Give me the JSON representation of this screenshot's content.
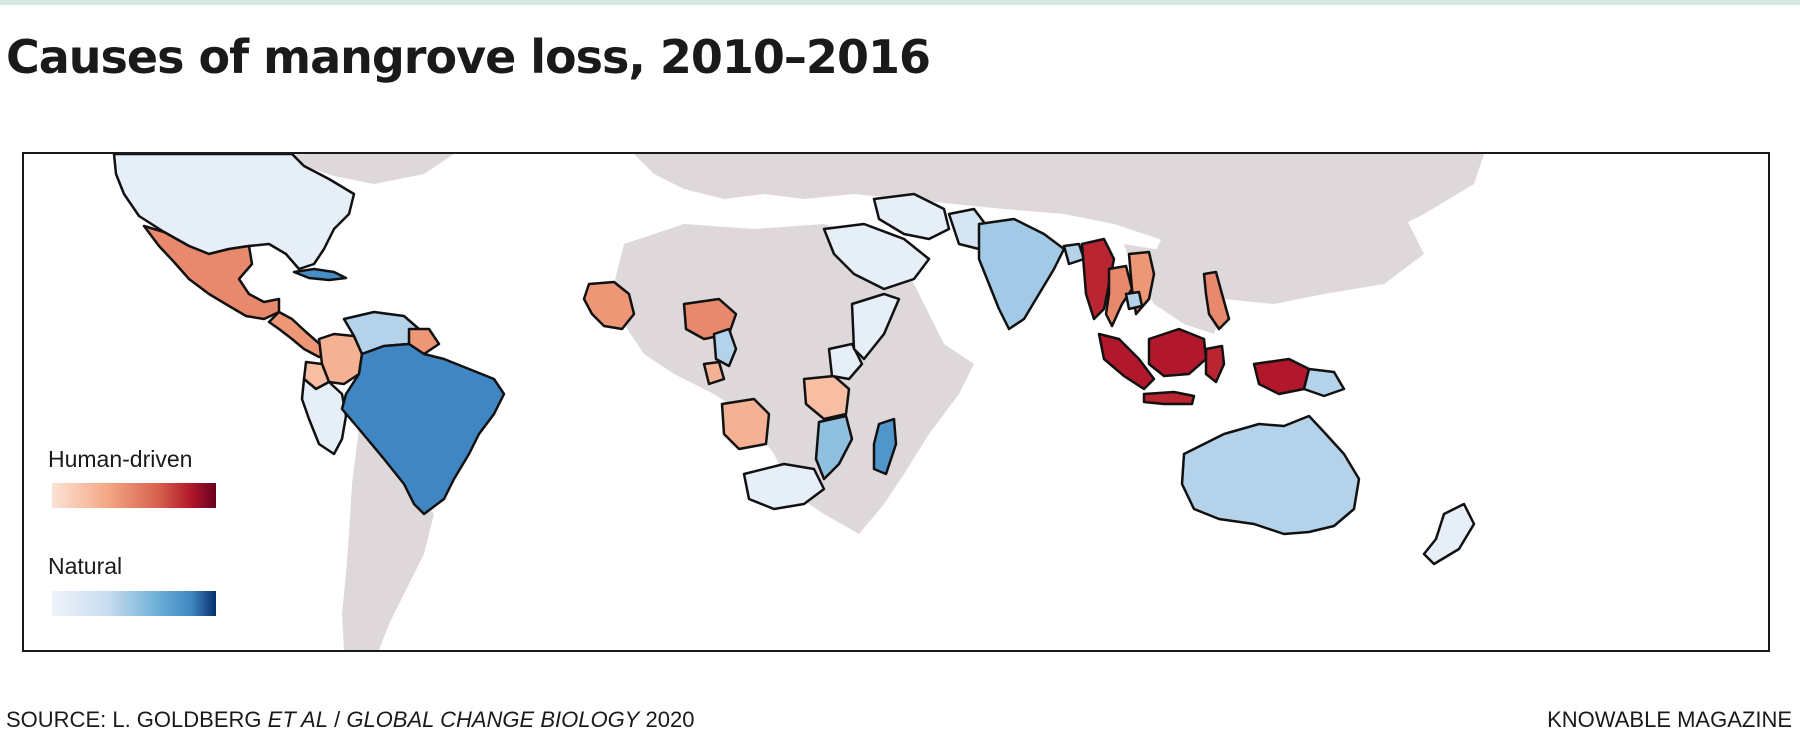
{
  "title": "Causes of mangrove loss, 2010–2016",
  "legend": {
    "human_label": "Human-driven",
    "natural_label": "Natural"
  },
  "footer": {
    "source_prefix": "SOURCE: L. GOLDBERG",
    "source_italic_authors": "ET AL",
    "source_separator": " / ",
    "source_italic_journal": "GLOBAL CHANGE BIOLOGY",
    "source_year": "2020",
    "credit": "KNOWABLE MAGAZINE"
  },
  "colors": {
    "human_scale": [
      "#fbe3d6",
      "#f4a582",
      "#d6604d",
      "#b2182b",
      "#67001f"
    ],
    "natural_scale": [
      "#eef4fa",
      "#c6dbef",
      "#6baed6",
      "#3f86c2",
      "#08306b"
    ],
    "no_data_land": "#ded8da",
    "border": "#111111",
    "top_rule": "#d3e7e3"
  },
  "map_data": {
    "regions": [
      {
        "id": "north-america",
        "category": "natural",
        "intensity": 0.05
      },
      {
        "id": "mexico",
        "category": "human",
        "intensity": 0.35
      },
      {
        "id": "central-america",
        "category": "human",
        "intensity": 0.3
      },
      {
        "id": "cuba",
        "category": "natural",
        "intensity": 0.7
      },
      {
        "id": "colombia",
        "category": "human",
        "intensity": 0.2
      },
      {
        "id": "venezuela",
        "category": "natural",
        "intensity": 0.3
      },
      {
        "id": "guianas",
        "category": "human",
        "intensity": 0.3
      },
      {
        "id": "ecuador",
        "category": "human",
        "intensity": 0.15
      },
      {
        "id": "peru",
        "category": "natural",
        "intensity": 0.05
      },
      {
        "id": "brazil",
        "category": "natural",
        "intensity": 0.75
      },
      {
        "id": "west-africa-guinea",
        "category": "human",
        "intensity": 0.3
      },
      {
        "id": "nigeria",
        "category": "human",
        "intensity": 0.35
      },
      {
        "id": "cameroon",
        "category": "natural",
        "intensity": 0.3
      },
      {
        "id": "gabon",
        "category": "human",
        "intensity": 0.2
      },
      {
        "id": "angola",
        "category": "human",
        "intensity": 0.2
      },
      {
        "id": "tanzania",
        "category": "human",
        "intensity": 0.15
      },
      {
        "id": "kenya",
        "category": "natural",
        "intensity": 0.05
      },
      {
        "id": "somalia",
        "category": "natural",
        "intensity": 0.05
      },
      {
        "id": "mozambique",
        "category": "natural",
        "intensity": 0.4
      },
      {
        "id": "madagascar",
        "category": "natural",
        "intensity": 0.65
      },
      {
        "id": "south-africa",
        "category": "natural",
        "intensity": 0.05
      },
      {
        "id": "arabian-peninsula",
        "category": "natural",
        "intensity": 0.05
      },
      {
        "id": "iran",
        "category": "natural",
        "intensity": 0.05
      },
      {
        "id": "pakistan",
        "category": "natural",
        "intensity": 0.15
      },
      {
        "id": "india",
        "category": "natural",
        "intensity": 0.35
      },
      {
        "id": "bangladesh",
        "category": "natural",
        "intensity": 0.3
      },
      {
        "id": "myanmar",
        "category": "human",
        "intensity": 0.7
      },
      {
        "id": "thailand",
        "category": "human",
        "intensity": 0.35
      },
      {
        "id": "vietnam",
        "category": "human",
        "intensity": 0.3
      },
      {
        "id": "cambodia",
        "category": "natural",
        "intensity": 0.3
      },
      {
        "id": "philippines",
        "category": "human",
        "intensity": 0.35
      },
      {
        "id": "malaysia-borneo",
        "category": "human",
        "intensity": 0.75
      },
      {
        "id": "sumatra",
        "category": "human",
        "intensity": 0.75
      },
      {
        "id": "java",
        "category": "human",
        "intensity": 0.7
      },
      {
        "id": "sulawesi",
        "category": "human",
        "intensity": 0.7
      },
      {
        "id": "new-guinea-west",
        "category": "human",
        "intensity": 0.75
      },
      {
        "id": "papua-new-guinea",
        "category": "natural",
        "intensity": 0.3
      },
      {
        "id": "australia",
        "category": "natural",
        "intensity": 0.3
      },
      {
        "id": "new-zealand",
        "category": "natural",
        "intensity": 0.05
      }
    ]
  }
}
